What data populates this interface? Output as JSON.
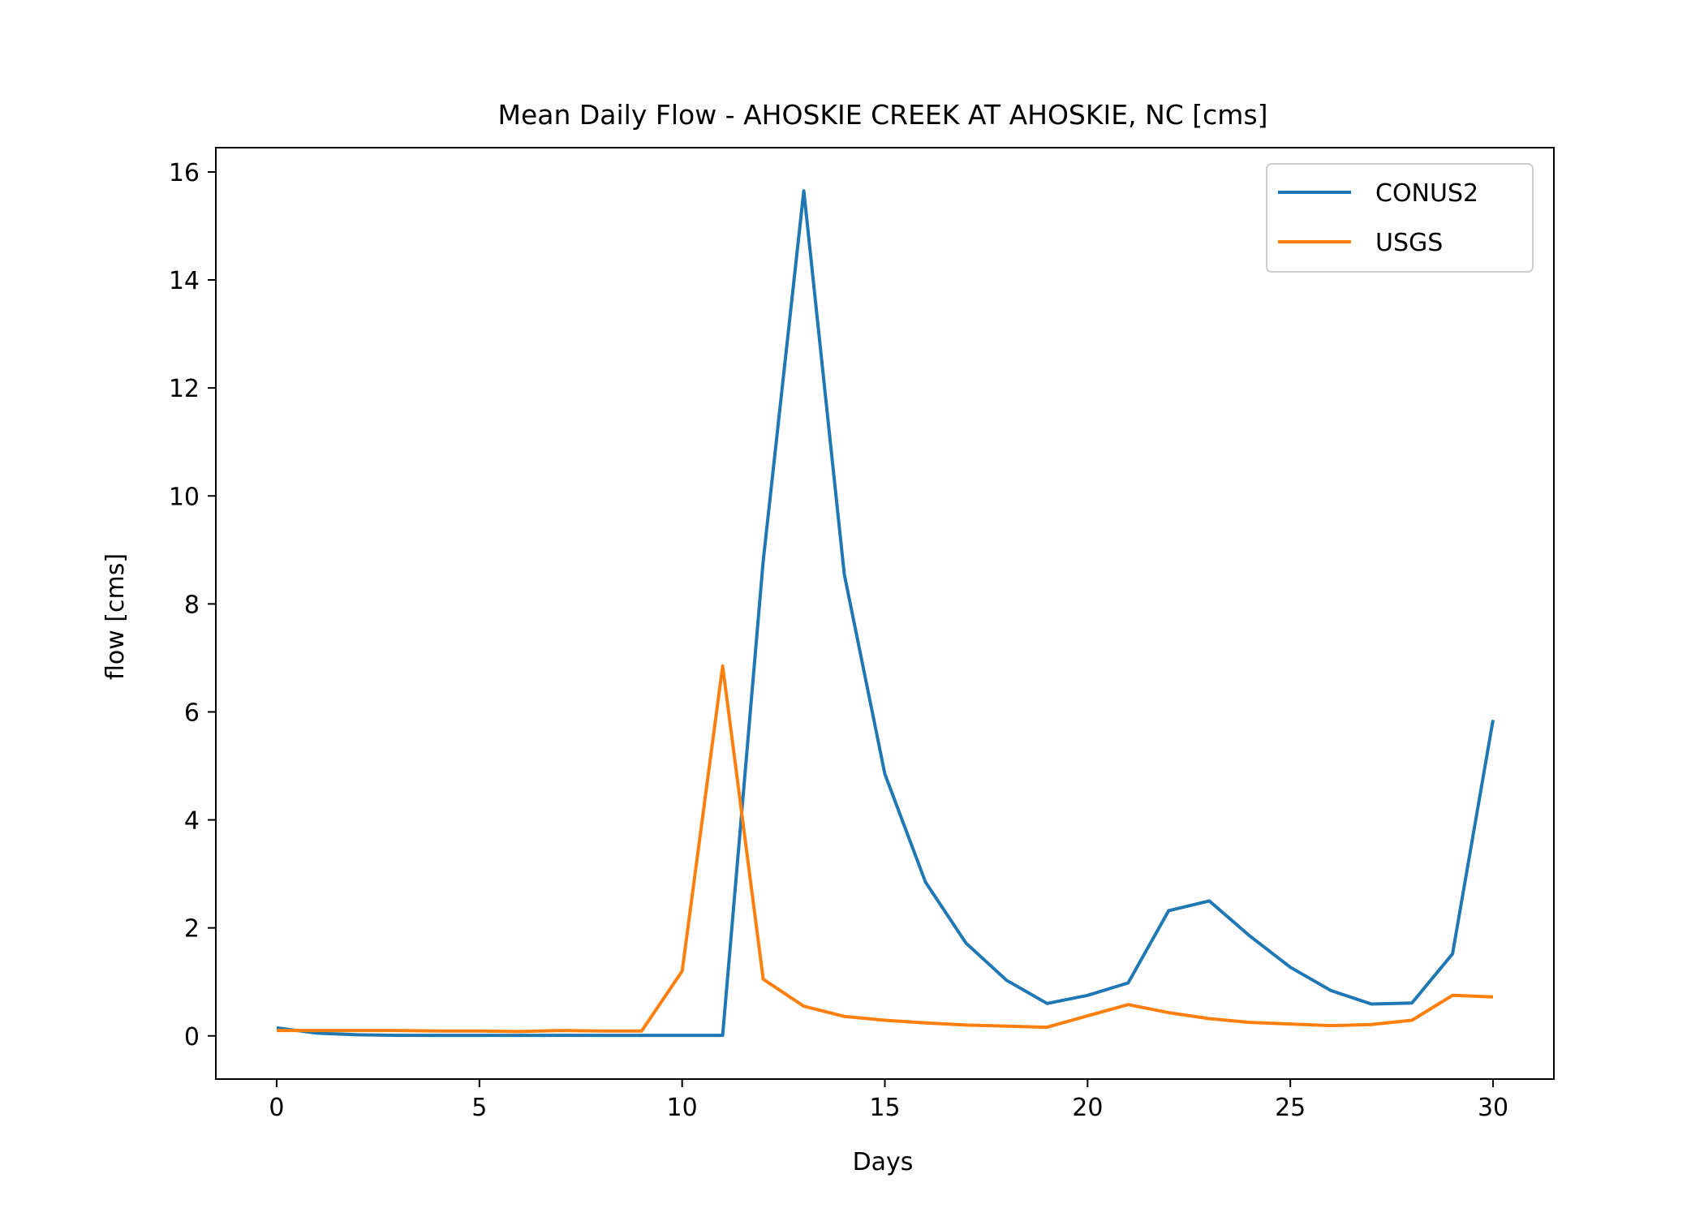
{
  "chart_data": {
    "type": "line",
    "title": "Mean Daily Flow - AHOSKIE CREEK AT AHOSKIE, NC [cms]",
    "xlabel": "Days",
    "ylabel": "flow [cms]",
    "xlim": [
      -1.5,
      31.5
    ],
    "ylim": [
      -0.8,
      16.45
    ],
    "xticks": [
      0,
      5,
      10,
      15,
      20,
      25,
      30
    ],
    "yticks": [
      0,
      2,
      4,
      6,
      8,
      10,
      12,
      14,
      16
    ],
    "grid": false,
    "legend_position": "top-right",
    "x": [
      0,
      1,
      2,
      3,
      4,
      5,
      6,
      7,
      8,
      9,
      10,
      11,
      12,
      13,
      14,
      15,
      16,
      17,
      18,
      19,
      20,
      21,
      22,
      23,
      24,
      25,
      26,
      27,
      28,
      29,
      30
    ],
    "series": [
      {
        "name": "CONUS2",
        "color": "#1f77b4",
        "values": [
          0.15,
          0.05,
          0.02,
          0.01,
          0.01,
          0.01,
          0.01,
          0.01,
          0.01,
          0.01,
          0.01,
          0.01,
          8.8,
          15.65,
          8.55,
          4.85,
          2.85,
          1.72,
          1.03,
          0.6,
          0.75,
          0.98,
          2.32,
          2.5,
          1.85,
          1.27,
          0.84,
          0.59,
          0.61,
          1.52,
          5.85
        ]
      },
      {
        "name": "USGS",
        "color": "#ff7f0e",
        "values": [
          0.1,
          0.1,
          0.1,
          0.1,
          0.09,
          0.09,
          0.08,
          0.1,
          0.09,
          0.09,
          1.2,
          6.85,
          1.05,
          0.55,
          0.36,
          0.29,
          0.24,
          0.2,
          0.18,
          0.16,
          0.37,
          0.58,
          0.43,
          0.32,
          0.25,
          0.22,
          0.19,
          0.21,
          0.29,
          0.75,
          0.72
        ]
      }
    ]
  }
}
